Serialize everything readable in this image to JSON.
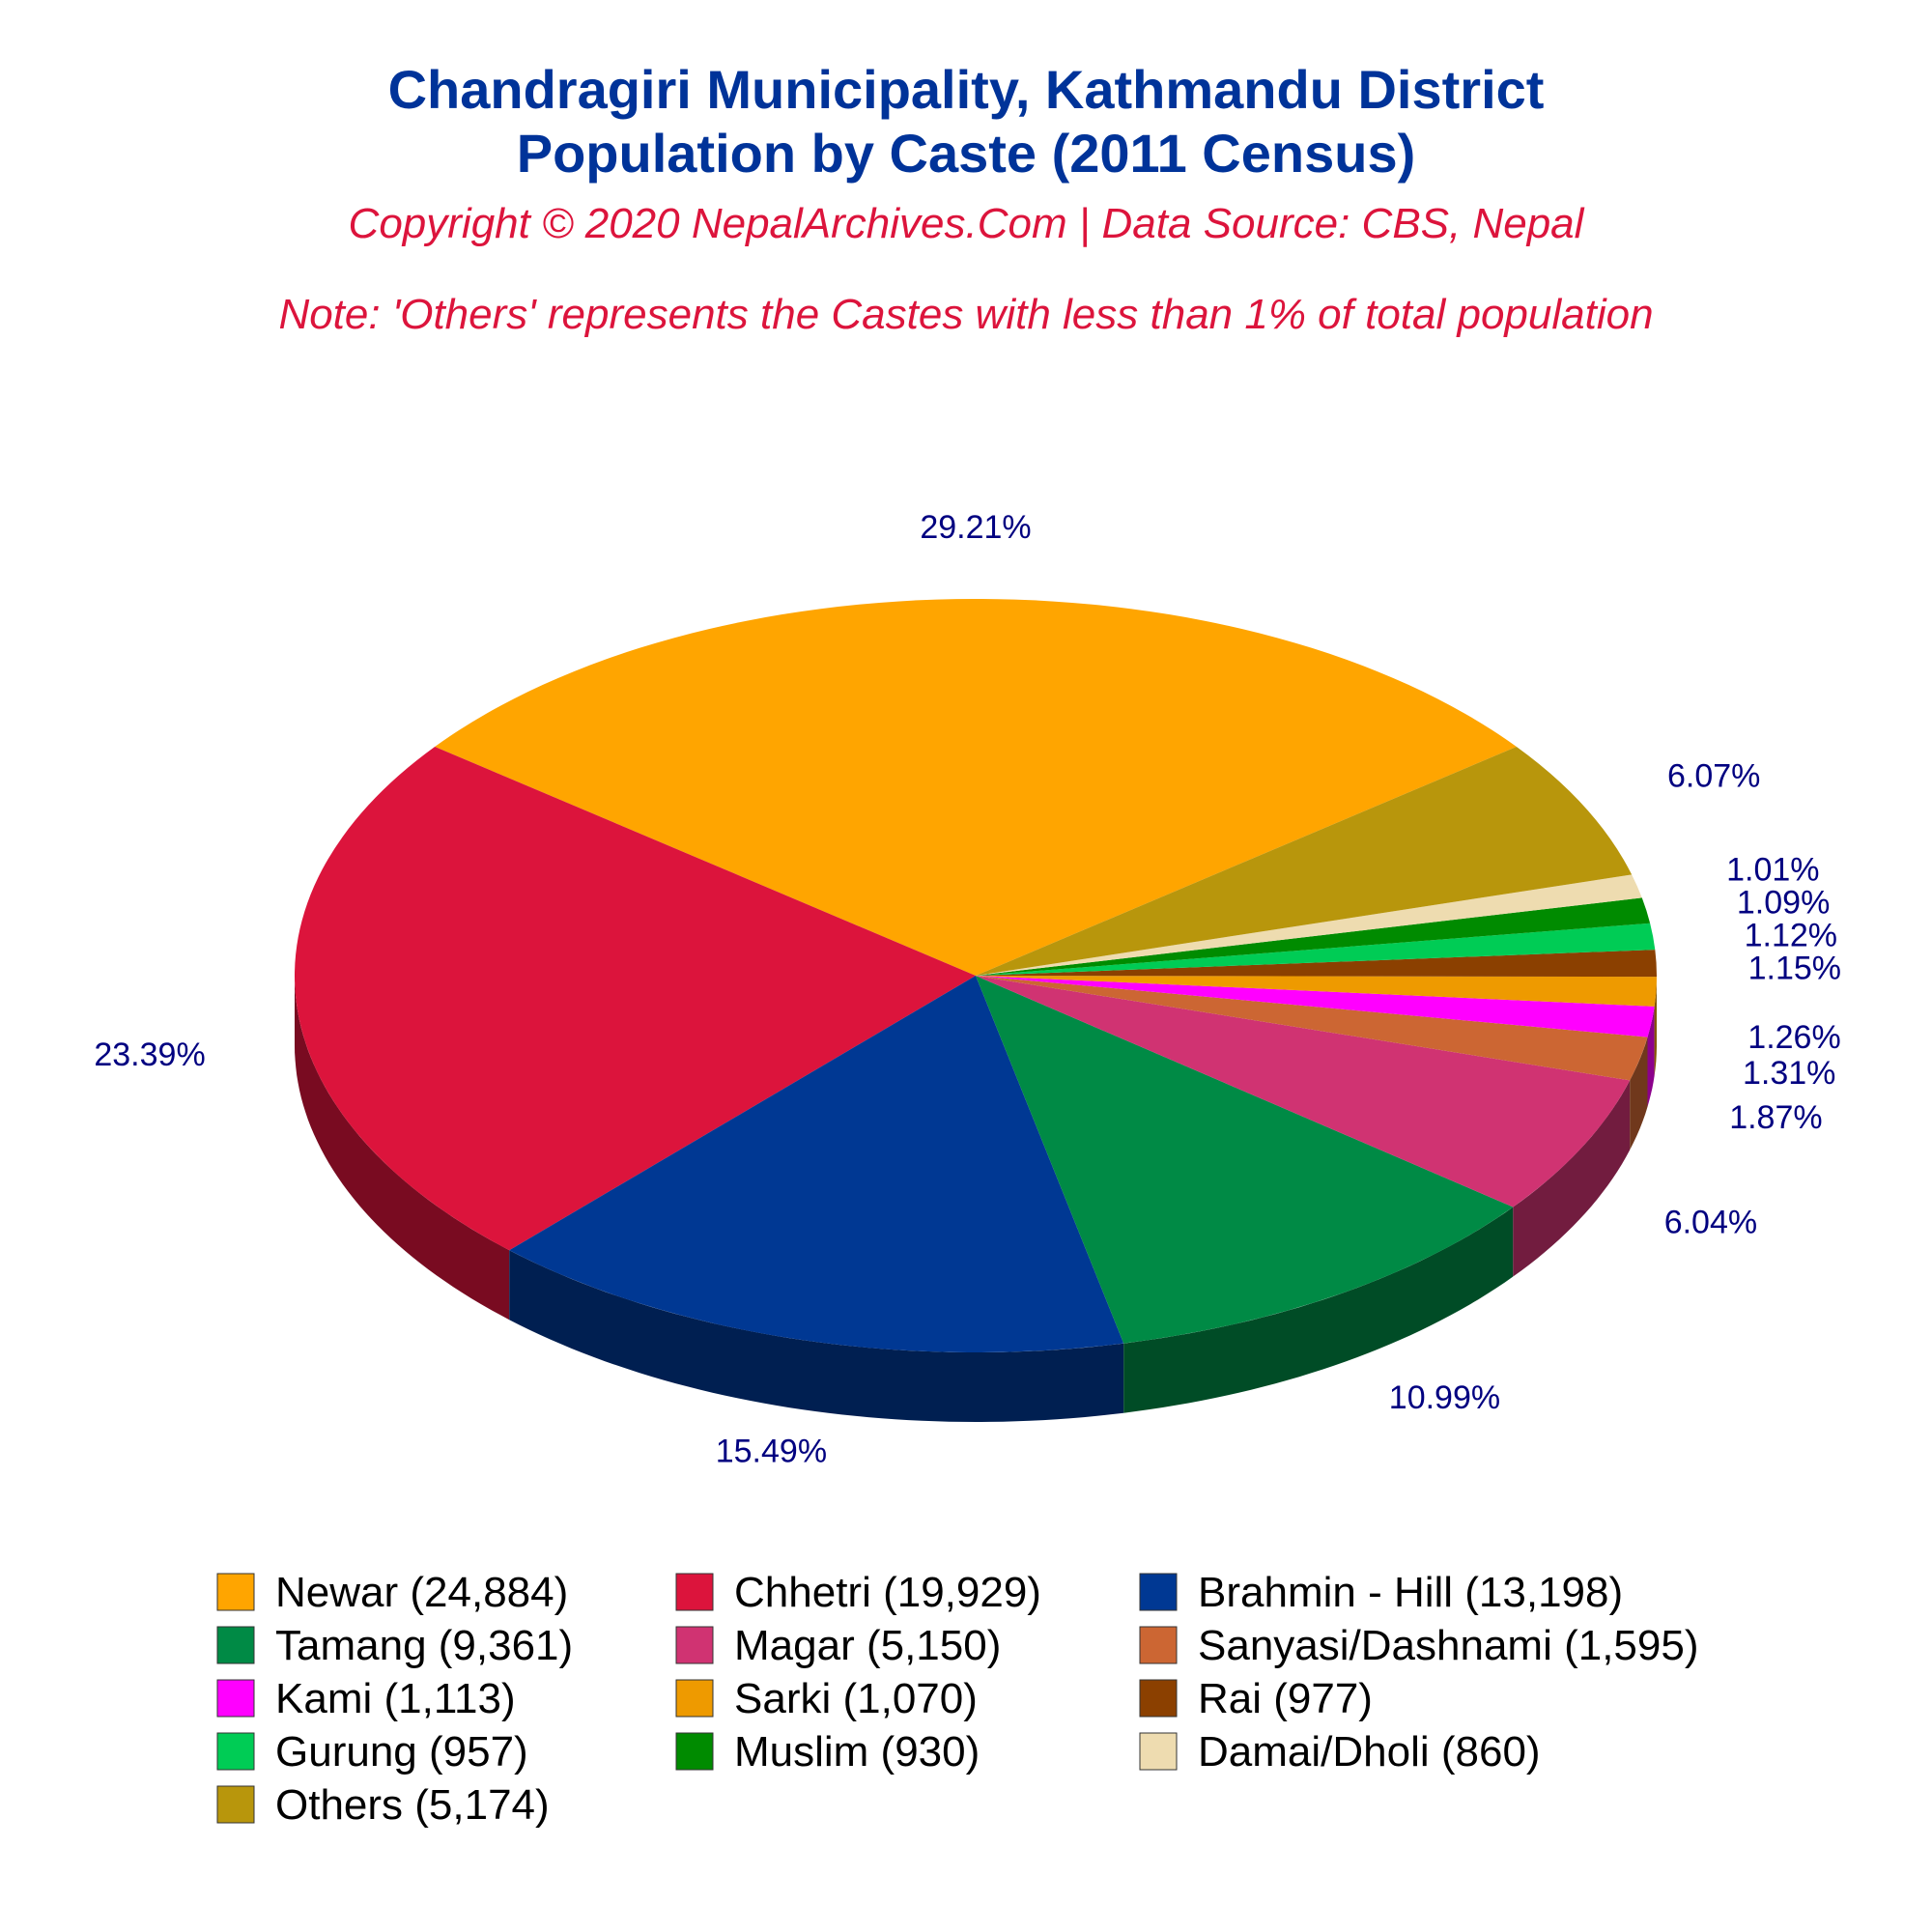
{
  "chart_data": {
    "type": "pie",
    "title": "Chandragiri Municipality, Kathmandu District",
    "title2": "Population by Caste (2011 Census)",
    "subtitle": "Copyright © 2020 NepalArchives.Com | Data Source: CBS, Nepal",
    "note": "Note: 'Others' represents the Castes with less than 1% of total population",
    "slices": [
      {
        "label": "Newar",
        "value": 24884,
        "legend": "Newar (24,884)",
        "pct": "29.21%",
        "color": "#ffa500"
      },
      {
        "label": "Chhetri",
        "value": 19929,
        "legend": "Chhetri (19,929)",
        "pct": "23.39%",
        "color": "#dc143c"
      },
      {
        "label": "Brahmin - Hill",
        "value": 13198,
        "legend": "Brahmin - Hill (13,198)",
        "pct": "15.49%",
        "color": "#003893"
      },
      {
        "label": "Tamang",
        "value": 9361,
        "legend": "Tamang (9,361)",
        "pct": "10.99%",
        "color": "#008a45"
      },
      {
        "label": "Magar",
        "value": 5150,
        "legend": "Magar (5,150)",
        "pct": "6.04%",
        "color": "#d03372"
      },
      {
        "label": "Sanyasi/Dashnami",
        "value": 1595,
        "legend": "Sanyasi/Dashnami (1,595)",
        "pct": "1.87%",
        "color": "#cc6633"
      },
      {
        "label": "Kami",
        "value": 1113,
        "legend": "Kami (1,113)",
        "pct": "1.31%",
        "color": "#ff00ff"
      },
      {
        "label": "Sarki",
        "value": 1070,
        "legend": "Sarki (1,070)",
        "pct": "1.26%",
        "color": "#ee9a00"
      },
      {
        "label": "Rai",
        "value": 977,
        "legend": "Rai (977)",
        "pct": "1.15%",
        "color": "#8b4000"
      },
      {
        "label": "Gurung",
        "value": 957,
        "legend": "Gurung (957)",
        "pct": "1.12%",
        "color": "#00cc55"
      },
      {
        "label": "Muslim",
        "value": 930,
        "legend": "Muslim (930)",
        "pct": "1.09%",
        "color": "#008b00"
      },
      {
        "label": "Damai/Dholi",
        "value": 860,
        "legend": "Damai/Dholi (860)",
        "pct": "1.01%",
        "color": "#eedcb0"
      },
      {
        "label": "Others",
        "value": 5174,
        "legend": "Others (5,174)",
        "pct": "6.07%",
        "color": "#b8960c"
      }
    ],
    "start": "Newar slice centered at top, slices proceed counter-clockwise",
    "style": "3d-tilted",
    "legend_position": "bottom",
    "legend_columns": 3
  }
}
